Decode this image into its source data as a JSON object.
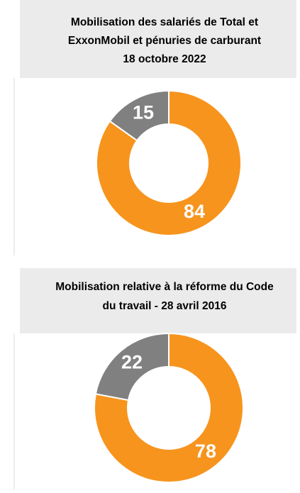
{
  "chart_data": [
    {
      "type": "donut",
      "title": [
        "Mobilisation des salariés de Total et",
        "ExxonMobil et pénuries de carburant",
        "18 octobre 2022"
      ],
      "values": [
        84,
        15
      ],
      "colors": [
        "#f7941d",
        "#808080"
      ]
    },
    {
      "type": "donut",
      "title": [
        "Mobilisation relative à la réforme du Code",
        "du travail - 28 avril 2016"
      ],
      "values": [
        78,
        22
      ],
      "colors": [
        "#f7941d",
        "#808080"
      ]
    }
  ]
}
